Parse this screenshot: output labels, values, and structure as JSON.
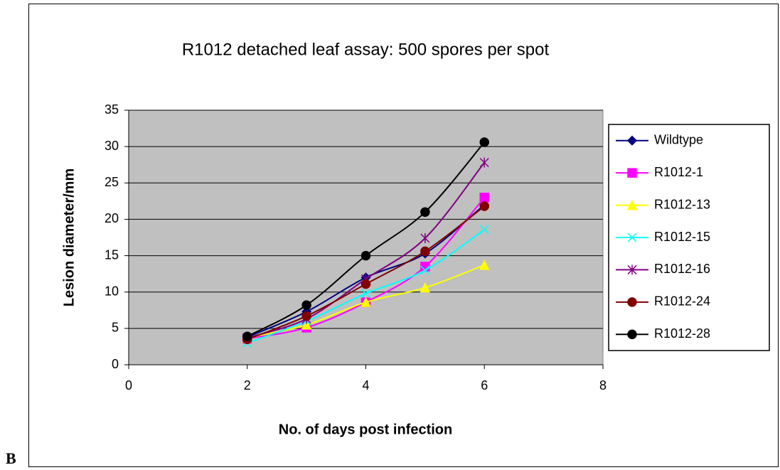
{
  "chart_data": {
    "type": "line",
    "title": "R1012 detached leaf assay: 500 spores per spot",
    "panel_label": "B",
    "x_label": "No. of days post infection",
    "y_label": "Lesion diameter/mm",
    "x": [
      2,
      3,
      4,
      5,
      6
    ],
    "xlim": [
      0,
      8
    ],
    "xticks": [
      0,
      2,
      4,
      6,
      8
    ],
    "ylim": [
      0,
      35
    ],
    "yticks": [
      0,
      5,
      10,
      15,
      20,
      25,
      30,
      35
    ],
    "grid": true,
    "legend": "right",
    "series": [
      {
        "name": "Wildtype",
        "color": "#000080",
        "marker": "diamond",
        "values": [
          3.8,
          7.3,
          12,
          15.3,
          22
        ]
      },
      {
        "name": "R1012-1",
        "color": "#ff00ff",
        "marker": "square",
        "values": [
          3.6,
          5.1,
          8.6,
          13.5,
          23
        ]
      },
      {
        "name": "R1012-13",
        "color": "#ffff00",
        "marker": "triangle",
        "values": [
          3.7,
          5.5,
          8.6,
          10.6,
          13.7
        ]
      },
      {
        "name": "R1012-15",
        "color": "#00ffff",
        "marker": "x",
        "values": [
          3.0,
          6.0,
          9.8,
          13.0,
          18.6
        ]
      },
      {
        "name": "R1012-16",
        "color": "#800080",
        "marker": "star",
        "values": [
          3.7,
          6.3,
          11.8,
          17.4,
          27.8
        ]
      },
      {
        "name": "R1012-24",
        "color": "#800000",
        "marker": "circle",
        "values": [
          3.5,
          6.7,
          11.1,
          15.6,
          21.8
        ]
      },
      {
        "name": "R1012-28",
        "color": "#000000",
        "marker": "circle",
        "values": [
          3.9,
          8.2,
          15,
          21,
          30.6
        ]
      }
    ]
  }
}
